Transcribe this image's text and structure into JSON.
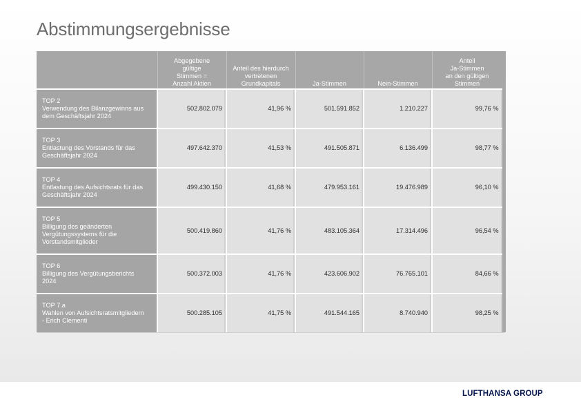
{
  "page": {
    "title": "Abstimmungsergebnisse"
  },
  "table": {
    "headers": {
      "col0": "",
      "col1": [
        "Abgegebene",
        "gültige",
        "Stimmen =",
        "Anzahl Aktien"
      ],
      "col2": [
        "Anteil des hierdurch",
        "vertretenen",
        "Grundkapitals"
      ],
      "col3": [
        "Ja-Stimmen"
      ],
      "col4": [
        "Nein-Stimmen"
      ],
      "col5": [
        "Anteil",
        "Ja-Stimmen",
        "an den gültigen",
        "Stimmen"
      ]
    },
    "rows": [
      {
        "label": [
          "TOP 2",
          "Verwendung des Bilanzgewinns aus",
          "dem Geschäftsjahr 2024"
        ],
        "stimmen": "502.802.079",
        "anteil": "41,96 %",
        "ja": "501.591.852",
        "nein": "1.210.227",
        "ja_anteil": "99,76 %"
      },
      {
        "label": [
          "TOP 3",
          "Entlastung des Vorstands für das",
          "Geschäftsjahr 2024"
        ],
        "stimmen": "497.642.370",
        "anteil": "41,53 %",
        "ja": "491.505.871",
        "nein": "6.136.499",
        "ja_anteil": "98,77 %"
      },
      {
        "label": [
          "TOP 4",
          "Entlastung des Aufsichtsrats für das",
          "Geschäftsjahr 2024"
        ],
        "stimmen": "499.430.150",
        "anteil": "41,68 %",
        "ja": "479.953.161",
        "nein": "19.476.989",
        "ja_anteil": "96,10 %"
      },
      {
        "label": [
          "TOP 5",
          "Billigung des geänderten",
          "Vergütungssystems für die",
          "Vorstandsmitglieder"
        ],
        "stimmen": "500.419.860",
        "anteil": "41,76 %",
        "ja": "483.105.364",
        "nein": "17.314.496",
        "ja_anteil": "96,54 %"
      },
      {
        "label": [
          "TOP 6",
          "Billigung des Vergütungsberichts",
          "2024"
        ],
        "stimmen": "500.372.003",
        "anteil": "41,76 %",
        "ja": "423.606.902",
        "nein": "76.765.101",
        "ja_anteil": "84,66 %"
      },
      {
        "label": [
          "TOP 7.a",
          "Wahlen von Aufsichtsratsmitgliedern",
          "- Erich Clementi"
        ],
        "stimmen": "500.285.105",
        "anteil": "41,75 %",
        "ja": "491.544.165",
        "nein": "8.740.940",
        "ja_anteil": "98,25 %"
      }
    ]
  },
  "footer": {
    "logo_text": "LUFTHANSA GROUP"
  }
}
